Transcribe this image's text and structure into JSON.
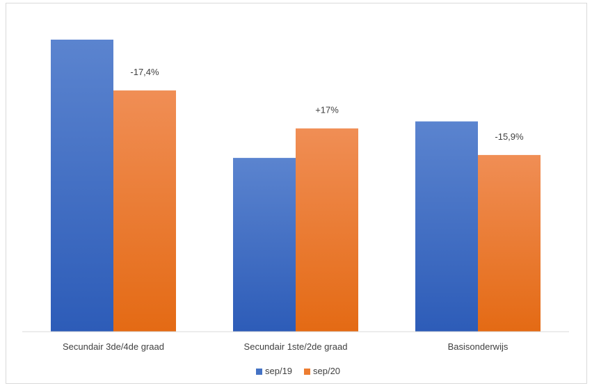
{
  "chart_data": {
    "type": "bar",
    "title": "",
    "xlabel": "",
    "ylabel": "",
    "categories": [
      "Secundair 3de/4de graad",
      "Secundair 1ste/2de graad",
      "Basisonderwijs"
    ],
    "series": [
      {
        "name": "sep/19",
        "values": [
          100,
          59.5,
          72
        ]
      },
      {
        "name": "sep/20",
        "values": [
          82.6,
          69.6,
          60.5
        ]
      }
    ],
    "data_labels": [
      null,
      "-17,4%",
      null,
      "+17%",
      null,
      "-15,9%"
    ],
    "ylim": [
      0,
      100
    ],
    "grid": false,
    "legend_position": "bottom",
    "colors": {
      "sep/19": "#4472c4",
      "sep/20": "#ed7d31"
    }
  }
}
